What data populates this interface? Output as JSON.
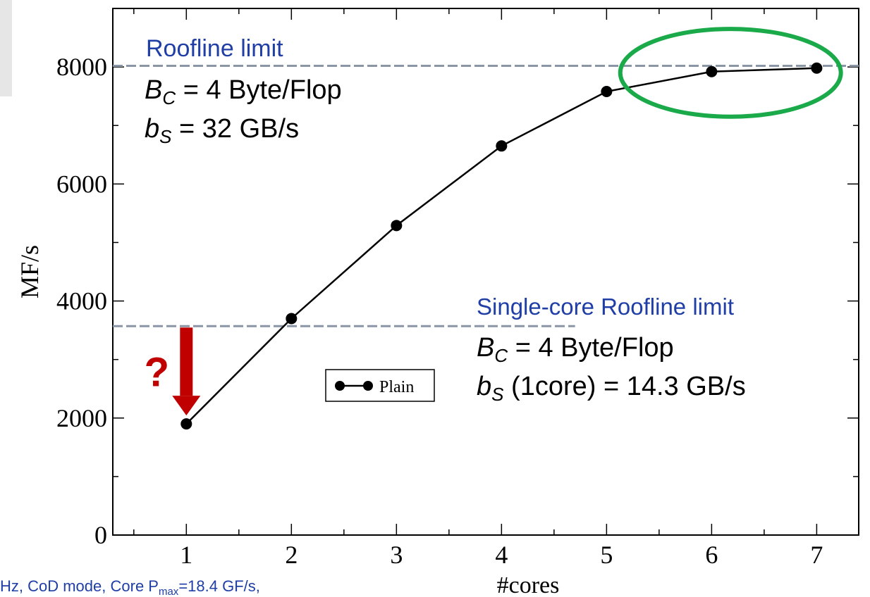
{
  "chart_data": {
    "type": "line",
    "xlabel": "#cores",
    "ylabel": "MF/s",
    "xlim": [
      0.3,
      7.4
    ],
    "ylim": [
      0,
      9000
    ],
    "x_ticks": [
      1,
      2,
      3,
      4,
      5,
      6,
      7
    ],
    "y_ticks": [
      0,
      2000,
      4000,
      6000,
      8000
    ],
    "grid": false,
    "legend_position": "center",
    "series": [
      {
        "name": "Plain",
        "color": "#000000",
        "marker": "circle",
        "x": [
          1,
          2,
          3,
          4,
          5,
          6,
          7
        ],
        "y": [
          1900,
          3700,
          5290,
          6650,
          7580,
          7920,
          7980
        ]
      }
    ],
    "reference_lines": [
      {
        "value": 8020,
        "color": "#8a95a5",
        "style": "dashed",
        "extent": "full"
      },
      {
        "value": 3570,
        "color": "#8a95a5",
        "style": "dashed",
        "extent": "partial",
        "x_end": 4.7
      }
    ],
    "annotations": {
      "roofline": {
        "title": "Roofline limit",
        "bc_sym": "B",
        "bc_sub": "C",
        "bc_text": " = 4 Byte/Flop",
        "bs_sym": "b",
        "bs_sub": "S",
        "bs_text": " = 32 GB/s"
      },
      "single_core": {
        "title": "Single-core Roofline limit",
        "bc_sym": "B",
        "bc_sub": "C",
        "bc_text": " = 4 Byte/Flop",
        "bs_sym": "b",
        "bs_sub": "S",
        "bs_text": " (1core) = 14.3 GB/s"
      },
      "question_mark": "?",
      "arrow": {
        "x": 1.0,
        "y_from": 3570,
        "y_to": 1900,
        "color": "#c00000"
      },
      "ellipse_highlight": {
        "color": "#1aaa4a",
        "x_center": 6.18,
        "y_center": 7900,
        "x_radius": 1.05,
        "y_radius": 750
      }
    },
    "footnote": {
      "part1": "Hz, CoD mode, Core P",
      "sub": "max",
      "part2": "=18.4 GF/s,"
    },
    "title_color": "#1f3ea6"
  }
}
